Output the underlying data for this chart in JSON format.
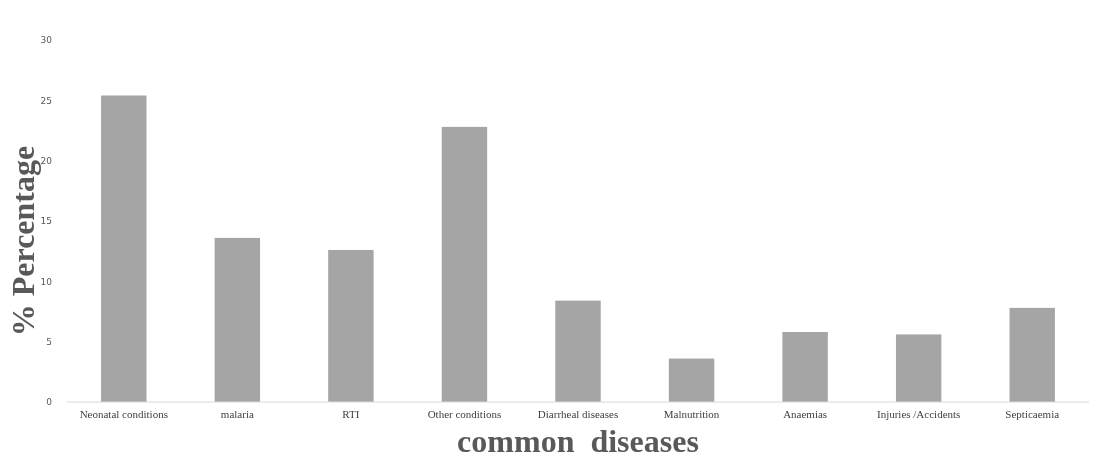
{
  "chart_data": {
    "type": "bar",
    "xlabel": "common  diseases",
    "ylabel": "% Percentage",
    "categories": [
      "Neonatal conditions",
      "malaria",
      "RTI",
      "Other conditions",
      "Diarrheal diseases",
      "Malnutrition",
      "Anaemias",
      "Injuries /Accidents",
      "Septicaemia"
    ],
    "values": [
      25.4,
      13.6,
      12.6,
      22.8,
      8.4,
      3.6,
      5.8,
      5.6,
      7.8
    ],
    "color": "#a5a5a5",
    "ylim": [
      0,
      30
    ],
    "yticks": [
      0,
      5,
      10,
      15,
      20,
      25,
      30
    ],
    "grid": false
  }
}
